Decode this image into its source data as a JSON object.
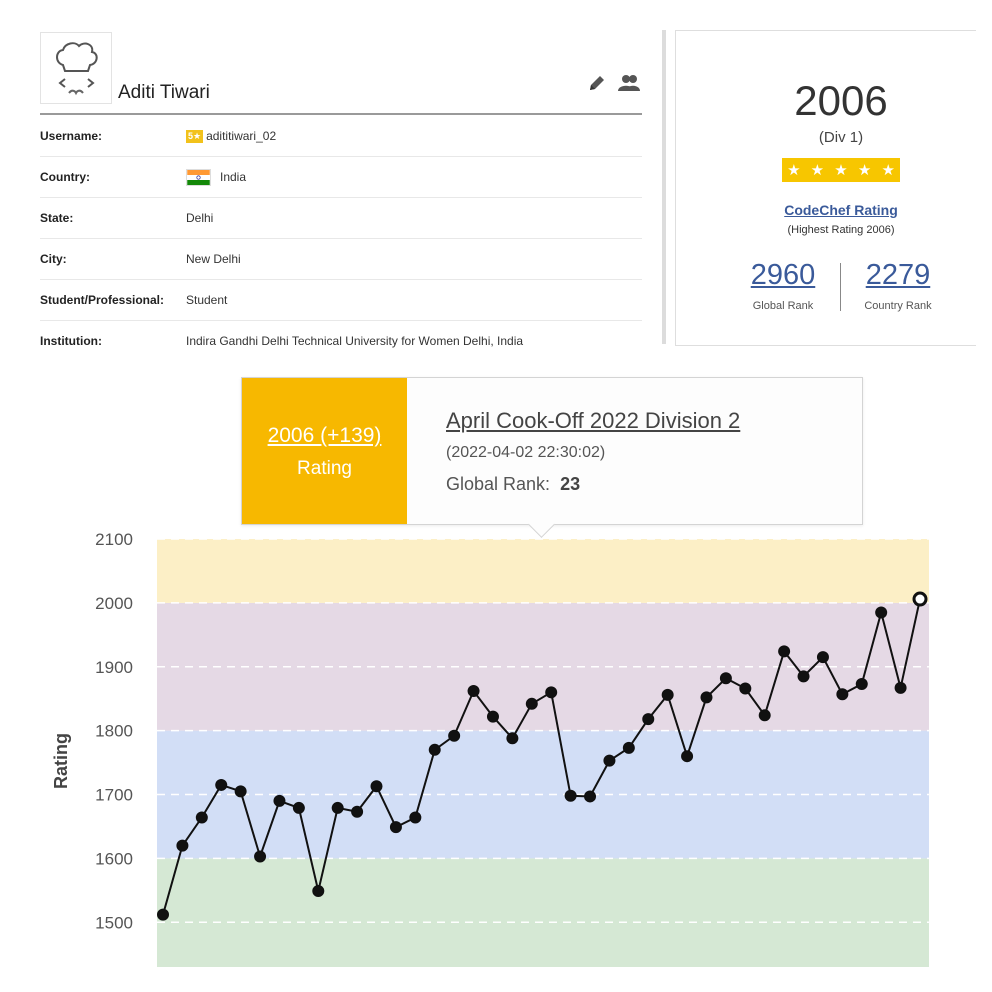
{
  "profile": {
    "name": "Aditi Tiwari",
    "fields": [
      {
        "label": "Username:",
        "value": "adititiwari_02",
        "badge": "5★"
      },
      {
        "label": "Country:",
        "value": "India"
      },
      {
        "label": "State:",
        "value": "Delhi"
      },
      {
        "label": "City:",
        "value": "New Delhi"
      },
      {
        "label": "Student/Professional:",
        "value": "Student"
      },
      {
        "label": "Institution:",
        "value": "Indira Gandhi Delhi Technical University for Women Delhi, India"
      }
    ],
    "icons": [
      "edit-pencil-icon",
      "users-icon"
    ]
  },
  "rating_card": {
    "rating": "2006",
    "division": "(Div 1)",
    "stars": "★★★★★",
    "link": "CodeChef Rating",
    "highest": "(Highest Rating 2006)",
    "global_rank": "2960",
    "global_rank_label": "Global Rank",
    "country_rank": "2279",
    "country_rank_label": "Country Rank",
    "accent": "#f7c600",
    "link_color": "#3a5a9a"
  },
  "tooltip": {
    "rating": "2006 (+139)",
    "rating_label": "Rating",
    "contest": "April Cook-Off 2022 Division 2",
    "date": "(2022-04-02 22:30:02)",
    "rank_label": "Global Rank:",
    "rank_value": "23",
    "accent": "#f7b800"
  },
  "chart_data": {
    "type": "line",
    "ylabel": "Rating",
    "ylim": [
      1430,
      2100
    ],
    "yticks": [
      "2100",
      "2000",
      "1900",
      "1800",
      "1700",
      "1600",
      "1500"
    ],
    "grid": true,
    "bands": [
      {
        "from": 1430,
        "to": 1600,
        "color": "#d5e8d4"
      },
      {
        "from": 1600,
        "to": 1800,
        "color": "#d2def6"
      },
      {
        "from": 1800,
        "to": 2000,
        "color": "#e5d9e5"
      },
      {
        "from": 2000,
        "to": 2100,
        "color": "#fcefc6"
      }
    ],
    "values": [
      1512,
      1620,
      1664,
      1715,
      1705,
      1603,
      1690,
      1679,
      1549,
      1679,
      1673,
      1713,
      1649,
      1664,
      1770,
      1792,
      1862,
      1822,
      1788,
      1842,
      1860,
      1698,
      1697,
      1753,
      1773,
      1818,
      1856,
      1760,
      1852,
      1882,
      1866,
      1824,
      1924,
      1885,
      1915,
      1857,
      1873,
      1985,
      1867,
      2006
    ]
  }
}
